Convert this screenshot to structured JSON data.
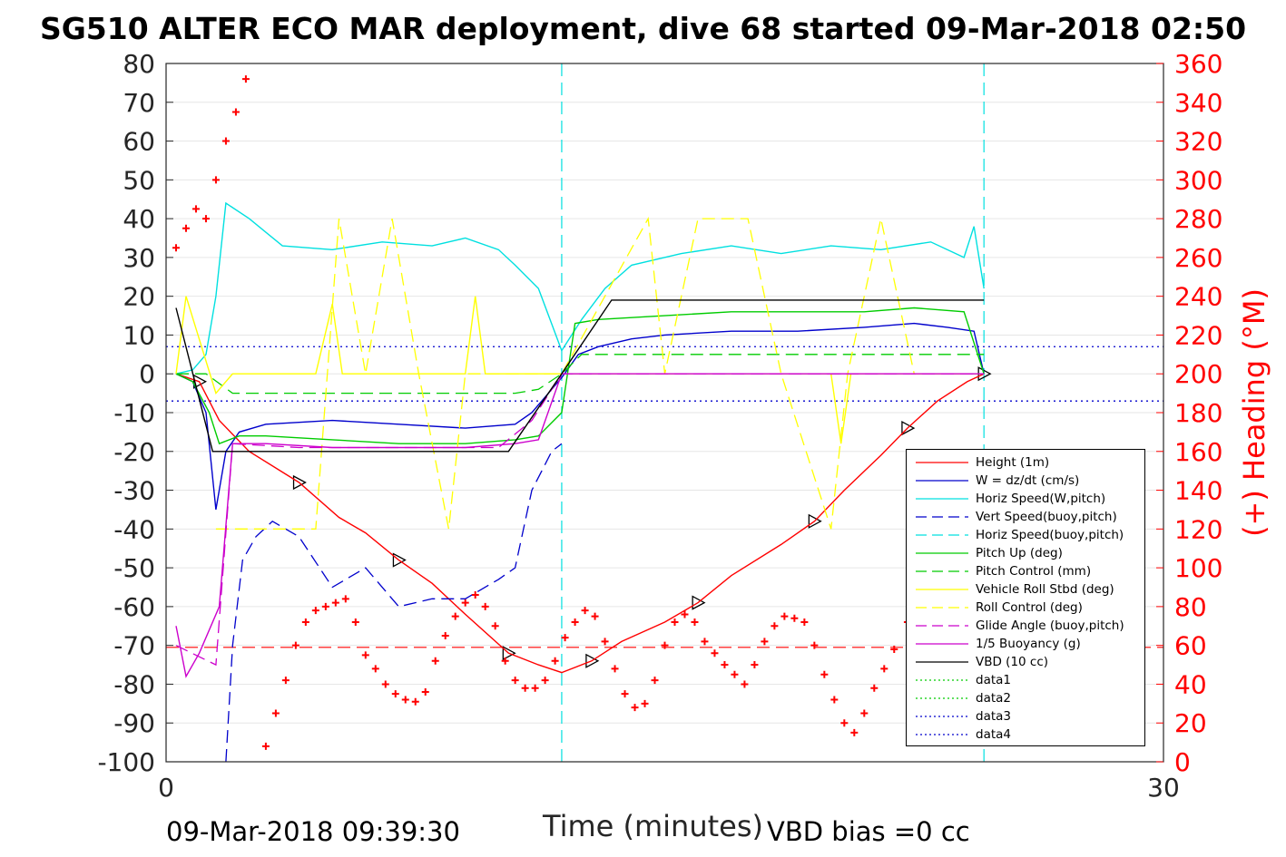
{
  "title": "SG510 ALTER ECO MAR deployment, dive 68 started 09-Mar-2018 02:50",
  "footer": {
    "date": "09-Mar-2018 09:39:30",
    "vbd_bias": "VBD bias =0 cc"
  },
  "chart_data": {
    "type": "line",
    "xlabel": "Time (minutes)",
    "ylabel_right": "(+) Heading (°M)",
    "xlim": [
      0,
      30
    ],
    "ylim_left": [
      -100,
      80
    ],
    "ylim_right": [
      0,
      360
    ],
    "x_ticks": [
      "0",
      "30"
    ],
    "y_ticks_left": [
      "80",
      "70",
      "60",
      "50",
      "40",
      "30",
      "20",
      "10",
      "0",
      "-10",
      "-20",
      "-30",
      "-40",
      "-50",
      "-60",
      "-70",
      "-80",
      "-90",
      "-100"
    ],
    "y_ticks_right": [
      "360",
      "340",
      "320",
      "300",
      "280",
      "260",
      "240",
      "220",
      "200",
      "180",
      "160",
      "140",
      "120",
      "100",
      "80",
      "60",
      "40",
      "20",
      "0"
    ],
    "grid": "horizontal",
    "legend_placement": "bottom-right",
    "reference_lines": {
      "dotted_blue_y": [
        7,
        -7
      ],
      "dashed_red_y": -70.5,
      "dashed_cyan_x": [
        11.9,
        24.6
      ]
    },
    "series": [
      {
        "name": "Height (1m)",
        "color": "#ff0000",
        "style": "solid",
        "marker": "triangle",
        "x": [
          0.3,
          1.0,
          1.6,
          2.5,
          4.0,
          5.2,
          6.0,
          7.0,
          8.0,
          9.0,
          10.3,
          11.2,
          11.9,
          12.8,
          13.7,
          15.0,
          16.0,
          17.0,
          18.5,
          19.5,
          20.4,
          21.5,
          22.3,
          23.2,
          24.1,
          24.6
        ],
        "y": [
          0,
          -2,
          -12,
          -20,
          -28,
          -37,
          -41,
          -48,
          -54,
          -62,
          -72,
          -75,
          -77,
          -74,
          -69,
          -64,
          -59,
          -52,
          -44,
          -38,
          -30,
          -21,
          -14,
          -7,
          -2,
          0
        ]
      },
      {
        "name": "W = dz/dt (cm/s)",
        "color": "#0000cc",
        "style": "solid",
        "x": [
          0.3,
          0.8,
          1.2,
          1.5,
          1.8,
          2.2,
          3.0,
          5.0,
          7.0,
          9.0,
          10.5,
          11.0,
          11.5,
          11.9,
          12.4,
          13.0,
          14.0,
          15.0,
          17.0,
          19.0,
          21.0,
          22.5,
          23.5,
          24.3,
          24.6
        ],
        "y": [
          0,
          -2,
          -10,
          -35,
          -20,
          -15,
          -13,
          -12,
          -13,
          -14,
          -13,
          -10,
          -5,
          -1,
          5,
          7,
          9,
          10,
          11,
          11,
          12,
          13,
          12,
          11,
          0
        ]
      },
      {
        "name": "Horiz Speed(W,pitch)",
        "color": "#00e0e0",
        "style": "solid",
        "x": [
          0.3,
          0.8,
          1.2,
          1.5,
          1.8,
          2.5,
          3.5,
          5.0,
          6.5,
          8.0,
          9.0,
          10.0,
          10.5,
          11.2,
          11.9,
          12.5,
          13.2,
          14.0,
          15.5,
          17.0,
          18.5,
          20.0,
          21.5,
          23.0,
          24.0,
          24.3,
          24.6
        ],
        "y": [
          0,
          1,
          5,
          20,
          44,
          40,
          33,
          32,
          34,
          33,
          35,
          32,
          28,
          22,
          6,
          14,
          22,
          28,
          31,
          33,
          31,
          33,
          32,
          34,
          30,
          38,
          22
        ]
      },
      {
        "name": "Vert Speed(buoy,pitch)",
        "color": "#0000cc",
        "style": "dashed",
        "x": [
          1.8,
          2.0,
          2.3,
          2.7,
          3.2,
          4.0,
          5.0,
          6.0,
          7.0,
          8.0,
          9.0,
          10.0,
          10.5,
          11.0,
          11.3,
          11.6,
          11.9
        ],
        "y": [
          -100,
          -70,
          -48,
          -42,
          -38,
          -42,
          -55,
          -50,
          -60,
          -58,
          -58,
          -53,
          -50,
          -30,
          -25,
          -20,
          -18
        ]
      },
      {
        "name": "Horiz Speed(buoy,pitch)",
        "color": "#00e0e0",
        "style": "dashed",
        "x": [
          11.9,
          24.6
        ],
        "y": [
          0,
          0
        ]
      },
      {
        "name": "Pitch Up (deg)",
        "color": "#00cc00",
        "style": "solid",
        "x": [
          0.3,
          0.8,
          1.3,
          1.6,
          2.2,
          3.0,
          5.0,
          7.0,
          9.0,
          10.5,
          11.2,
          11.9,
          12.3,
          13.0,
          15.0,
          17.0,
          19.0,
          21.0,
          22.5,
          24.0,
          24.6
        ],
        "y": [
          0,
          -2,
          -10,
          -18,
          -16,
          -16,
          -17,
          -18,
          -18,
          -17,
          -16,
          -10,
          13,
          14,
          15,
          16,
          16,
          16,
          17,
          16,
          0
        ]
      },
      {
        "name": "Pitch Control (mm)",
        "color": "#00cc00",
        "style": "dashed",
        "x": [
          0.3,
          1.2,
          2.0,
          10.5,
          11.2,
          11.9,
          12.5,
          24.6
        ],
        "y": [
          0,
          0,
          -5,
          -5,
          -4,
          0,
          5,
          5
        ]
      },
      {
        "name": "Vehicle Roll Stbd (deg)",
        "color": "#ffff00",
        "style": "solid",
        "x": [
          0.3,
          0.6,
          1.5,
          2.0,
          4.5,
          5.0,
          5.3,
          5.6,
          6.0,
          8.0,
          9.0,
          9.3,
          9.6,
          10.0,
          11.9,
          14.5,
          15.5,
          20.0,
          20.3,
          20.6,
          24.6
        ],
        "y": [
          0,
          20,
          -5,
          0,
          0,
          18,
          0,
          0,
          0,
          0,
          0,
          20,
          0,
          0,
          0,
          0,
          0,
          0,
          -18,
          0,
          0
        ]
      },
      {
        "name": "Roll Control (deg)",
        "color": "#ffff00",
        "style": "dashed",
        "x": [
          1.5,
          2.2,
          3.0,
          4.5,
          5.2,
          6.0,
          6.8,
          7.6,
          8.5,
          9.0,
          10.0,
          11.9,
          14.5,
          15.0,
          16.0,
          17.5,
          18.5,
          20.0,
          20.5,
          21.5,
          22.5,
          24.6
        ],
        "y": [
          -40,
          -40,
          -40,
          -40,
          40,
          0,
          40,
          0,
          -40,
          0,
          0,
          0,
          40,
          0,
          40,
          40,
          0,
          -40,
          0,
          40,
          0,
          0
        ]
      },
      {
        "name": "Glide Angle (buoy,pitch)",
        "color": "#cc00cc",
        "style": "dashed",
        "x": [
          0.3,
          1.5,
          2.0,
          4.0,
          6.0,
          8.0,
          10.0,
          11.0,
          11.9,
          24.6
        ],
        "y": [
          -70,
          -75,
          -18,
          -19,
          -19,
          -19,
          -19,
          -12,
          0,
          0
        ]
      },
      {
        "name": "1/5 Buoyancy (g)",
        "color": "#cc00cc",
        "style": "solid",
        "x": [
          0.3,
          0.6,
          1.0,
          1.6,
          2.0,
          3.0,
          5.0,
          7.0,
          9.0,
          10.5,
          11.2,
          11.9,
          24.6
        ],
        "y": [
          -65,
          -78,
          -72,
          -60,
          -18,
          -18,
          -19,
          -19,
          -19,
          -18,
          -17,
          0,
          0
        ]
      },
      {
        "name": "VBD (10 cc)",
        "color": "#000000",
        "style": "solid",
        "x": [
          0.3,
          1.4,
          10.3,
          11.9,
          13.4,
          24.6
        ],
        "y": [
          17,
          -20,
          -20,
          0,
          19,
          19
        ]
      },
      {
        "name": "data1",
        "color": "#00cc00",
        "style": "dotted",
        "x": [],
        "y": []
      },
      {
        "name": "data2",
        "color": "#00cc00",
        "style": "dotted",
        "x": [],
        "y": []
      },
      {
        "name": "data3",
        "color": "#0000cc",
        "style": "dotted",
        "x": [],
        "y": []
      },
      {
        "name": "data4",
        "color": "#0000cc",
        "style": "dotted",
        "x": [],
        "y": []
      }
    ],
    "heading_series": {
      "color": "#ff0000",
      "marker": "+",
      "x": [
        0.3,
        0.6,
        0.9,
        1.2,
        1.5,
        1.8,
        2.1,
        2.4,
        2.7,
        3.0,
        3.3,
        3.6,
        3.9,
        4.2,
        4.5,
        4.8,
        5.1,
        5.4,
        5.7,
        6.0,
        6.3,
        6.6,
        6.9,
        7.2,
        7.5,
        7.8,
        8.1,
        8.4,
        8.7,
        9.0,
        9.3,
        9.6,
        9.9,
        10.2,
        10.5,
        10.8,
        11.1,
        11.4,
        11.7,
        12.0,
        12.3,
        12.6,
        12.9,
        13.2,
        13.5,
        13.8,
        14.1,
        14.4,
        14.7,
        15.0,
        15.3,
        15.6,
        15.9,
        16.2,
        16.5,
        16.8,
        17.1,
        17.4,
        17.7,
        18.0,
        18.3,
        18.6,
        18.9,
        19.2,
        19.5,
        19.8,
        20.1,
        20.4,
        20.7,
        21.0,
        21.3,
        21.6,
        21.9,
        22.3
      ],
      "y": [
        265,
        275,
        285,
        280,
        300,
        320,
        335,
        352,
        362,
        8,
        25,
        42,
        60,
        72,
        78,
        80,
        82,
        84,
        72,
        55,
        48,
        40,
        35,
        32,
        31,
        36,
        52,
        65,
        75,
        82,
        86,
        80,
        70,
        52,
        42,
        38,
        38,
        42,
        52,
        64,
        72,
        78,
        75,
        62,
        48,
        35,
        28,
        30,
        42,
        60,
        72,
        76,
        72,
        62,
        56,
        50,
        45,
        40,
        50,
        62,
        70,
        75,
        74,
        72,
        60,
        45,
        32,
        20,
        15,
        25,
        38,
        48,
        58,
        72
      ]
    }
  }
}
